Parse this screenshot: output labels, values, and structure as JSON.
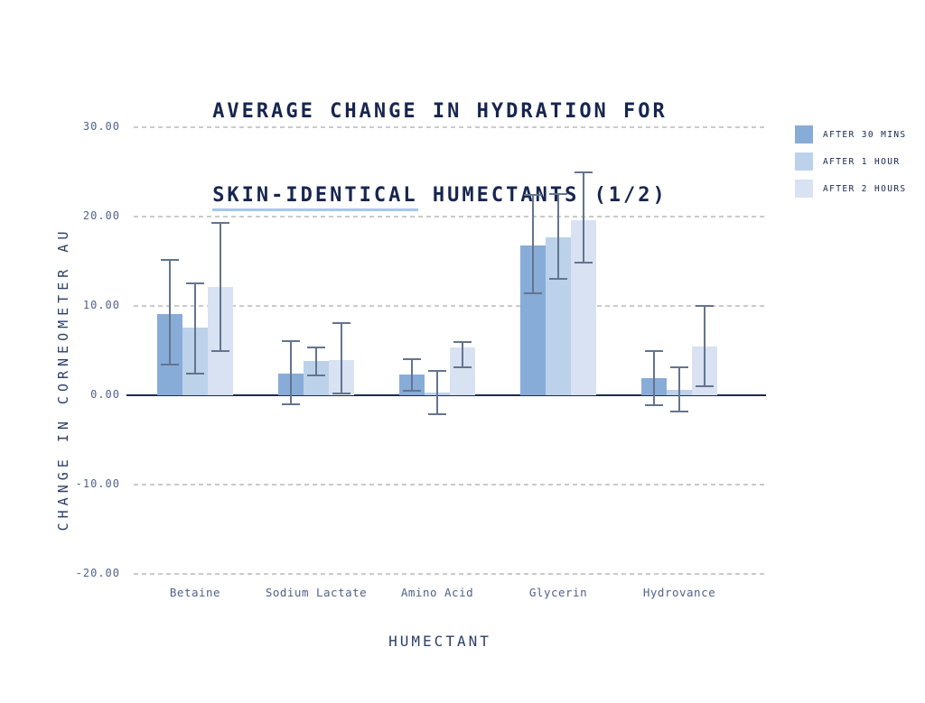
{
  "title": {
    "line1": "AVERAGE CHANGE IN HYDRATION FOR",
    "line2_underlined": "SKIN-IDENTICAL",
    "line2_rest": " HUMECTANTS (1/2)"
  },
  "colors": {
    "title-text": "#17264f",
    "axis-text": "#51618a",
    "strong-axis-text": "#2c3e68",
    "muted-grid": "#cacaca",
    "zero-line": "#1c2a4b",
    "error-bar": "#64748f",
    "underline": "#a6c7ee"
  },
  "chart_data": {
    "type": "bar",
    "title": "AVERAGE CHANGE IN HYDRATION FOR SKIN-IDENTICAL HUMECTANTS (1/2)",
    "xlabel": "HUMECTANT",
    "ylabel": "CHANGE IN CORNEOMETER AU",
    "ylim": [
      -20,
      30
    ],
    "y_tick_labels": [
      "30.00",
      "20.00",
      "10.00",
      "0.00",
      "-10.00",
      "-20.00"
    ],
    "grid": "horizontal-dashed",
    "legend_position": "top-right",
    "categories": [
      "Betaine",
      "Sodium Lactate",
      "Amino Acid",
      "Glycerin",
      "Hydrovance"
    ],
    "series": [
      {
        "name": "AFTER 30 MINS",
        "color": "#88acd8",
        "values": [
          9.1,
          2.4,
          2.3,
          16.8,
          1.9
        ],
        "error_high": [
          15.2,
          6.1,
          4.0,
          22.4,
          5.0
        ],
        "error_low": [
          3.4,
          -1.0,
          0.5,
          11.4,
          -1.1
        ]
      },
      {
        "name": "AFTER 1 HOUR",
        "color": "#bcd2ea",
        "values": [
          7.6,
          3.8,
          0.3,
          17.7,
          0.6
        ],
        "error_high": [
          12.5,
          5.4,
          2.7,
          22.5,
          3.1
        ],
        "error_low": [
          2.4,
          2.2,
          -2.1,
          13.0,
          -1.8
        ]
      },
      {
        "name": "AFTER 2 HOURS",
        "color": "#d8e2f2",
        "values": [
          12.1,
          3.9,
          5.4,
          19.6,
          5.5
        ],
        "error_high": [
          19.3,
          8.1,
          6.0,
          24.9,
          10.0
        ],
        "error_low": [
          4.9,
          0.2,
          3.1,
          14.8,
          1.0
        ]
      }
    ]
  }
}
